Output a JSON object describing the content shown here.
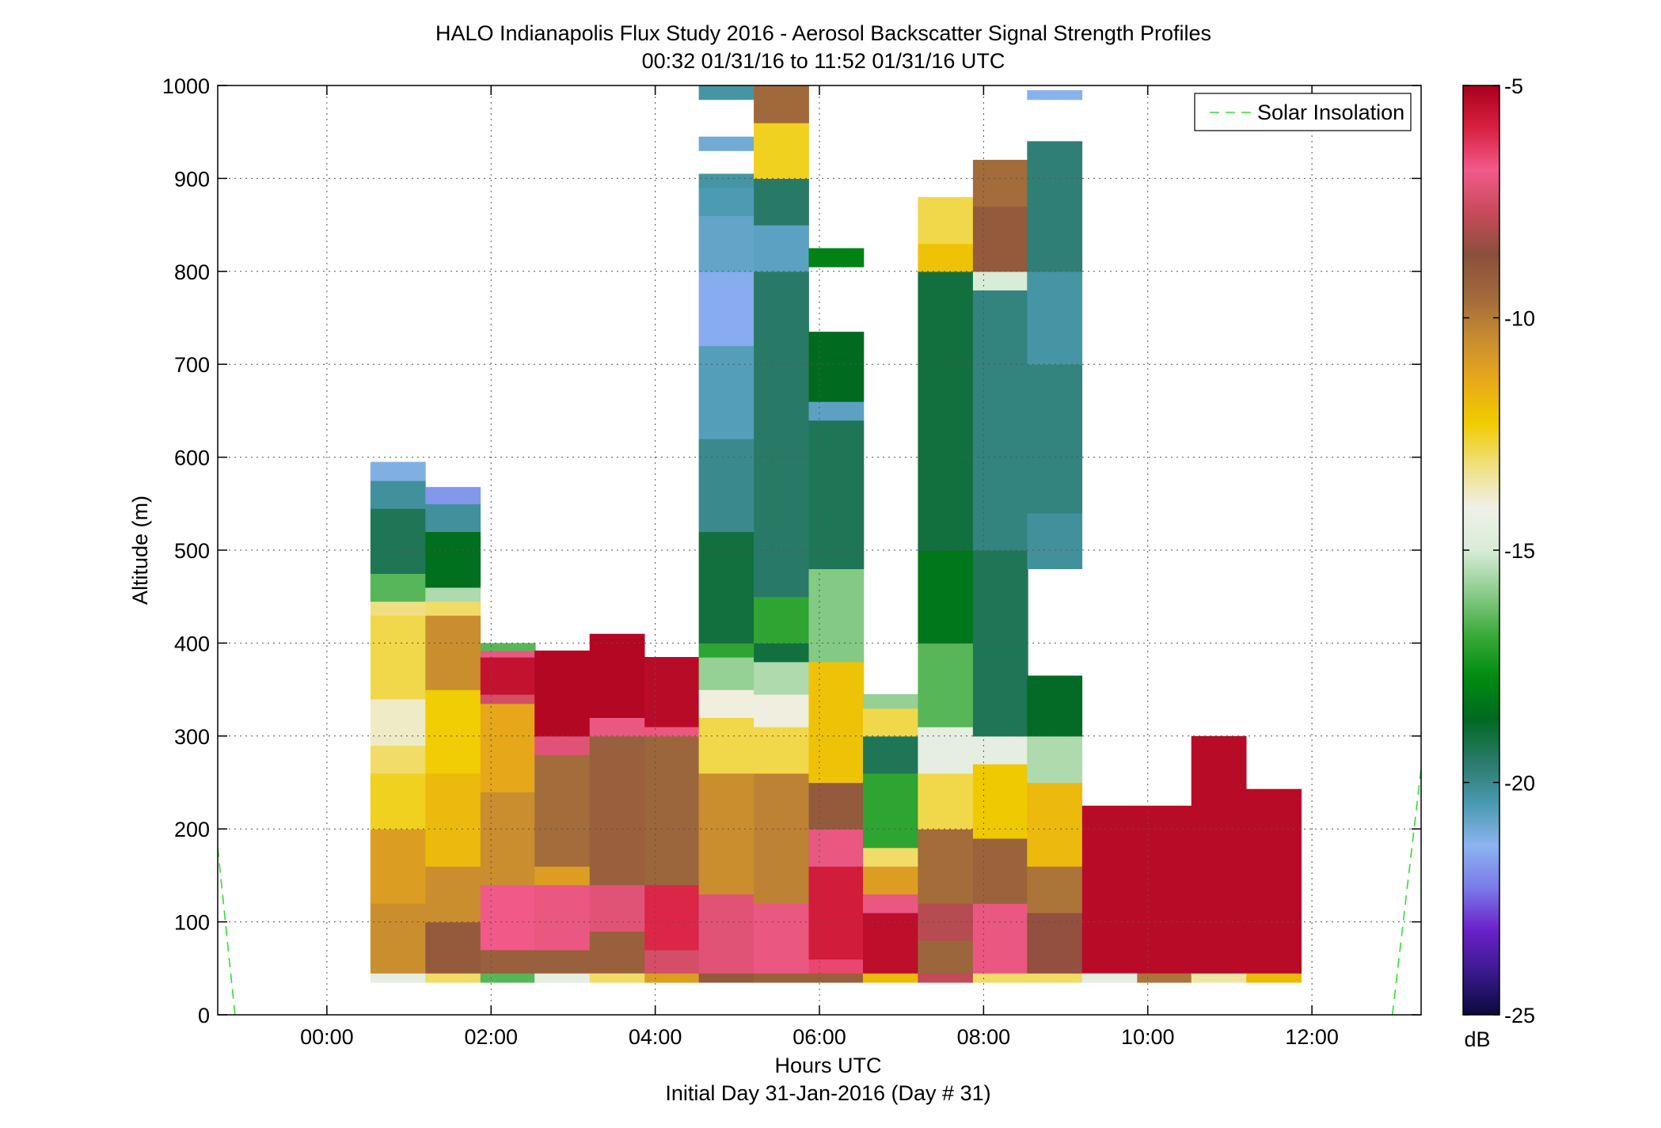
{
  "chart_data": {
    "type": "heatmap",
    "title": "HALO Indianapolis Flux Study 2016 - Aerosol Backscatter Signal Strength Profiles",
    "subtitle": "00:32 01/31/16 to 11:52 01/31/16  UTC",
    "xlabel": "Hours UTC",
    "xlabel2": "Initial Day 31-Jan-2016 (Day # 31)",
    "ylabel": "Altitude (m)",
    "xlim": [
      -1.33,
      13.33
    ],
    "ylim": [
      0,
      1000
    ],
    "x_ticks": [
      0,
      2,
      4,
      6,
      8,
      10,
      12
    ],
    "x_tick_labels": [
      "00:00",
      "02:00",
      "04:00",
      "06:00",
      "08:00",
      "10:00",
      "12:00"
    ],
    "y_ticks": [
      0,
      100,
      200,
      300,
      400,
      500,
      600,
      700,
      800,
      900,
      1000
    ],
    "y_tick_labels": [
      "0",
      "100",
      "200",
      "300",
      "400",
      "500",
      "600",
      "700",
      "800",
      "900",
      "1000"
    ],
    "grid": true,
    "colorbar": {
      "label": "dB",
      "range": [
        -25,
        -5
      ],
      "ticks": [
        -25,
        -20,
        -15,
        -10,
        -5
      ],
      "tick_labels": [
        "-25",
        "-20",
        "-15",
        "-10",
        "-5"
      ],
      "colors": [
        "#0a0a3c",
        "#3a1a8c",
        "#6a20c8",
        "#7a7ae8",
        "#8cb4f0",
        "#4a9ab0",
        "#2a7a6a",
        "#006a20",
        "#008c10",
        "#3aaa3a",
        "#8ccc8c",
        "#d8ecd8",
        "#f0f0e8",
        "#f0e080",
        "#f0cc00",
        "#e8aa18",
        "#c88c30",
        "#a06a3c",
        "#8a503c",
        "#c84a5a",
        "#f25a8a",
        "#d82040",
        "#a8001c"
      ]
    },
    "legend": {
      "entries": [
        "Solar Insolation"
      ],
      "placement": "top-right"
    },
    "solar_insolation": [
      {
        "x": [
          -1.33,
          -1.12
        ],
        "y": [
          180,
          0
        ]
      },
      {
        "x": [
          12.98,
          13.33
        ],
        "y": [
          0,
          265
        ]
      }
    ],
    "column_width_hours": 0.667,
    "columns": [
      {
        "start": 0.53,
        "bottom": 35,
        "segments": [
          [
            35,
            45,
            -14.5
          ],
          [
            45,
            120,
            -10.5
          ],
          [
            120,
            200,
            -11.0
          ],
          [
            200,
            260,
            -12.5
          ],
          [
            260,
            290,
            -13.0
          ],
          [
            290,
            340,
            -13.8
          ],
          [
            340,
            430,
            -12.8
          ],
          [
            430,
            445,
            -13.2
          ],
          [
            445,
            475,
            -16.5
          ],
          [
            475,
            545,
            -19.3
          ],
          [
            545,
            575,
            -20.2
          ],
          [
            575,
            595,
            -21.2
          ]
        ]
      },
      {
        "start": 1.2,
        "bottom": 35,
        "segments": [
          [
            35,
            45,
            -13.0
          ],
          [
            45,
            100,
            -9.0
          ],
          [
            100,
            160,
            -10.5
          ],
          [
            160,
            260,
            -11.8
          ],
          [
            260,
            350,
            -12.3
          ],
          [
            350,
            430,
            -10.5
          ],
          [
            430,
            445,
            -13.0
          ],
          [
            445,
            460,
            -15.5
          ],
          [
            460,
            520,
            -18.5
          ],
          [
            520,
            550,
            -20.2
          ],
          [
            550,
            568,
            -21.8
          ]
        ]
      },
      {
        "start": 1.87,
        "bottom": 35,
        "segments": [
          [
            35,
            45,
            -16.5
          ],
          [
            45,
            70,
            -9.2
          ],
          [
            70,
            140,
            -6.8
          ],
          [
            140,
            240,
            -10.5
          ],
          [
            240,
            335,
            -11.3
          ],
          [
            335,
            345,
            -7.5
          ],
          [
            345,
            385,
            -5.5
          ],
          [
            385,
            392,
            -7.0
          ],
          [
            392,
            400,
            -16.5
          ]
        ]
      },
      {
        "start": 2.53,
        "bottom": 35,
        "segments": [
          [
            35,
            45,
            -14.5
          ],
          [
            45,
            70,
            -9.2
          ],
          [
            70,
            140,
            -7.0
          ],
          [
            140,
            160,
            -11.0
          ],
          [
            160,
            280,
            -9.6
          ],
          [
            280,
            300,
            -7.2
          ],
          [
            300,
            392,
            -5.2
          ]
        ]
      },
      {
        "start": 3.2,
        "bottom": 35,
        "segments": [
          [
            35,
            45,
            -13.0
          ],
          [
            45,
            90,
            -9.2
          ],
          [
            90,
            140,
            -7.2
          ],
          [
            140,
            300,
            -9.2
          ],
          [
            300,
            320,
            -7.0
          ],
          [
            320,
            410,
            -5.2
          ]
        ]
      },
      {
        "start": 3.87,
        "bottom": 35,
        "segments": [
          [
            35,
            45,
            -11.0
          ],
          [
            45,
            70,
            -7.5
          ],
          [
            70,
            140,
            -6.0
          ],
          [
            140,
            300,
            -9.4
          ],
          [
            300,
            310,
            -7.0
          ],
          [
            310,
            385,
            -5.3
          ]
        ]
      },
      {
        "start": 4.53,
        "bottom": 35,
        "segments": [
          [
            35,
            45,
            -9.0
          ],
          [
            45,
            130,
            -7.2
          ],
          [
            130,
            260,
            -10.5
          ],
          [
            260,
            320,
            -12.8
          ],
          [
            320,
            350,
            -14.0
          ],
          [
            350,
            385,
            -15.8
          ],
          [
            385,
            400,
            -17.0
          ],
          [
            400,
            520,
            -19.0
          ],
          [
            520,
            620,
            -20.0
          ],
          [
            620,
            720,
            -20.6
          ],
          [
            720,
            800,
            -21.5
          ],
          [
            800,
            860,
            -20.8
          ],
          [
            860,
            890,
            -20.5
          ],
          [
            890,
            905,
            -20.3
          ],
          [
            930,
            945,
            -21.0
          ],
          [
            985,
            1000,
            -20.3
          ]
        ]
      },
      {
        "start": 5.2,
        "bottom": 35,
        "segments": [
          [
            35,
            45,
            -9.2
          ],
          [
            45,
            120,
            -7.0
          ],
          [
            120,
            260,
            -10.2
          ],
          [
            260,
            310,
            -12.8
          ],
          [
            310,
            345,
            -14.0
          ],
          [
            345,
            380,
            -15.5
          ],
          [
            380,
            400,
            -19.0
          ],
          [
            400,
            450,
            -17.0
          ],
          [
            450,
            800,
            -19.5
          ],
          [
            800,
            850,
            -20.7
          ],
          [
            850,
            900,
            -19.5
          ],
          [
            900,
            960,
            -12.5
          ],
          [
            960,
            1000,
            -9.5
          ]
        ]
      },
      {
        "start": 5.87,
        "bottom": 35,
        "segments": [
          [
            35,
            45,
            -9.2
          ],
          [
            45,
            60,
            -6.5
          ],
          [
            60,
            160,
            -5.8
          ],
          [
            160,
            200,
            -7.0
          ],
          [
            200,
            250,
            -9.0
          ],
          [
            250,
            380,
            -12.0
          ],
          [
            380,
            480,
            -16.0
          ],
          [
            480,
            640,
            -19.3
          ],
          [
            640,
            660,
            -20.7
          ],
          [
            660,
            735,
            -18.6
          ],
          [
            805,
            825,
            -18.0
          ]
        ]
      },
      {
        "start": 6.53,
        "bottom": 35,
        "segments": [
          [
            35,
            45,
            -11.8
          ],
          [
            45,
            110,
            -5.4
          ],
          [
            110,
            130,
            -7.0
          ],
          [
            130,
            160,
            -11.0
          ],
          [
            160,
            180,
            -13.0
          ],
          [
            180,
            260,
            -17.0
          ],
          [
            260,
            300,
            -19.3
          ],
          [
            300,
            330,
            -12.8
          ],
          [
            330,
            345,
            -15.8
          ]
        ]
      },
      {
        "start": 7.2,
        "bottom": 35,
        "segments": [
          [
            35,
            45,
            -7.8
          ],
          [
            45,
            80,
            -9.4
          ],
          [
            80,
            120,
            -8.0
          ],
          [
            120,
            200,
            -9.6
          ],
          [
            200,
            260,
            -12.8
          ],
          [
            260,
            310,
            -14.5
          ],
          [
            310,
            400,
            -16.5
          ],
          [
            400,
            500,
            -18.3
          ],
          [
            500,
            800,
            -19.0
          ],
          [
            800,
            830,
            -12.0
          ],
          [
            830,
            880,
            -12.8
          ]
        ]
      },
      {
        "start": 7.87,
        "bottom": 35,
        "segments": [
          [
            35,
            45,
            -13.0
          ],
          [
            45,
            120,
            -7.0
          ],
          [
            120,
            190,
            -9.3
          ],
          [
            190,
            270,
            -12.2
          ],
          [
            270,
            300,
            -14.5
          ],
          [
            300,
            500,
            -19.3
          ],
          [
            500,
            780,
            -19.8
          ],
          [
            780,
            800,
            -15.0
          ],
          [
            800,
            870,
            -9.0
          ],
          [
            870,
            920,
            -9.6
          ]
        ]
      },
      {
        "start": 8.53,
        "bottom": 35,
        "segments": [
          [
            35,
            45,
            -13.0
          ],
          [
            45,
            110,
            -8.5
          ],
          [
            110,
            160,
            -9.8
          ],
          [
            160,
            250,
            -11.8
          ],
          [
            250,
            300,
            -15.5
          ],
          [
            300,
            365,
            -18.7
          ],
          [
            480,
            540,
            -20.2
          ],
          [
            540,
            700,
            -19.8
          ],
          [
            700,
            800,
            -20.3
          ],
          [
            800,
            940,
            -19.7
          ],
          [
            985,
            995,
            -21.3
          ]
        ]
      },
      {
        "start": 9.2,
        "bottom": 35,
        "segments": [
          [
            35,
            45,
            -14.5
          ],
          [
            45,
            225,
            -5.3
          ]
        ]
      },
      {
        "start": 9.87,
        "bottom": 35,
        "segments": [
          [
            35,
            45,
            -9.8
          ],
          [
            45,
            225,
            -5.3
          ]
        ]
      },
      {
        "start": 10.53,
        "bottom": 35,
        "segments": [
          [
            35,
            45,
            -13.5
          ],
          [
            45,
            300,
            -5.3
          ]
        ]
      },
      {
        "start": 11.2,
        "bottom": 35,
        "segments": [
          [
            35,
            45,
            -11.8
          ],
          [
            45,
            243,
            -5.3
          ]
        ]
      }
    ]
  }
}
